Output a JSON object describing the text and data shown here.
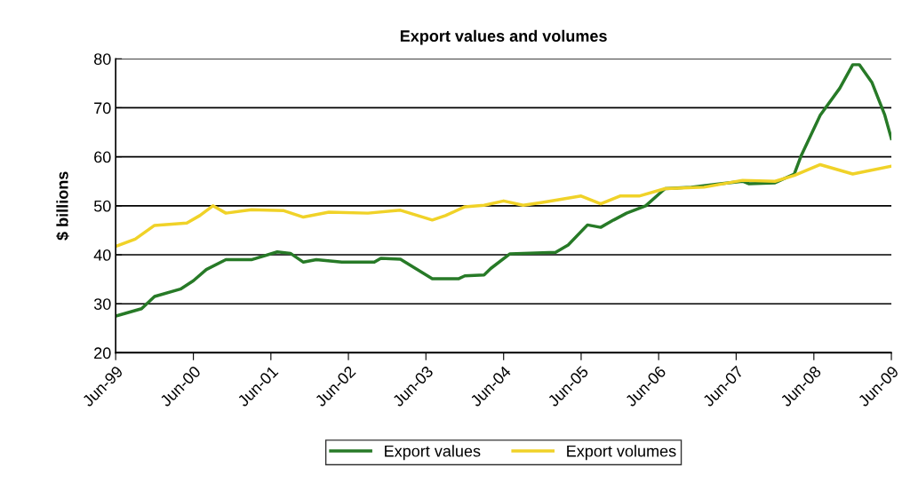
{
  "chart_data": {
    "type": "line",
    "title": "Export values and volumes",
    "ylabel": "$ billions",
    "xlim": [
      "1999-06",
      "2009-06"
    ],
    "ylim": [
      20,
      80
    ],
    "yticks": [
      20,
      30,
      40,
      50,
      60,
      70,
      80
    ],
    "xticks": [
      {
        "value": "1999-06",
        "label": "Jun-99"
      },
      {
        "value": "2000-06",
        "label": "Jun-00"
      },
      {
        "value": "2001-06",
        "label": "Jun-01"
      },
      {
        "value": "2002-06",
        "label": "Jun-02"
      },
      {
        "value": "2003-06",
        "label": "Jun-03"
      },
      {
        "value": "2004-06",
        "label": "Jun-04"
      },
      {
        "value": "2005-06",
        "label": "Jun-05"
      },
      {
        "value": "2006-06",
        "label": "Jun-06"
      },
      {
        "value": "2007-06",
        "label": "Jun-07"
      },
      {
        "value": "2008-06",
        "label": "Jun-08"
      },
      {
        "value": "2009-06",
        "label": "Jun-09"
      }
    ],
    "grid": "y",
    "legend": "bottom",
    "marker": "none",
    "line_style": "solid",
    "series": [
      {
        "name": "Export values",
        "color": "#277a27",
        "x": [
          "1999-06",
          "1999-10",
          "1999-12",
          "2000-04",
          "2000-06",
          "2000-08",
          "2000-11",
          "2001-03",
          "2001-07",
          "2001-09",
          "2001-11",
          "2002-01",
          "2002-05",
          "2002-10",
          "2002-11",
          "2003-02",
          "2003-07",
          "2003-11",
          "2003-12",
          "2004-03",
          "2004-04",
          "2004-07",
          "2005-02",
          "2005-04",
          "2005-07",
          "2005-09",
          "2005-11",
          "2006-01",
          "2006-04",
          "2006-07",
          "2006-11",
          "2007-03",
          "2007-07",
          "2007-08",
          "2007-12",
          "2008-03",
          "2008-04",
          "2008-07",
          "2008-10",
          "2008-12",
          "2009-01",
          "2009-03",
          "2009-05",
          "2009-06"
        ],
        "values": [
          27.5,
          29,
          31.5,
          33,
          34.7,
          37,
          39,
          39,
          40.6,
          40.3,
          38.5,
          39,
          38.5,
          38.5,
          39.3,
          39.1,
          35.1,
          35.1,
          35.7,
          35.9,
          37.2,
          40.2,
          40.5,
          42,
          46.1,
          45.6,
          47.1,
          48.5,
          50,
          53.5,
          53.8,
          54.4,
          55,
          54.5,
          54.7,
          56.5,
          60.1,
          68.5,
          74,
          78.8,
          78.8,
          75.2,
          68.5,
          63.7
        ]
      },
      {
        "name": "Export volumes",
        "color": "#f0d228",
        "x": [
          "1999-06",
          "1999-09",
          "1999-12",
          "2000-05",
          "2000-07",
          "2000-09",
          "2000-11",
          "2001-03",
          "2001-08",
          "2001-11",
          "2002-03",
          "2002-09",
          "2003-02",
          "2003-07",
          "2003-09",
          "2003-12",
          "2004-03",
          "2004-06",
          "2004-09",
          "2004-12",
          "2005-06",
          "2005-09",
          "2005-12",
          "2006-03",
          "2006-07",
          "2007-01",
          "2007-07",
          "2007-12",
          "2008-03",
          "2008-07",
          "2008-12",
          "2009-06"
        ],
        "values": [
          41.7,
          43.2,
          46,
          46.5,
          48,
          50,
          48.5,
          49.2,
          49,
          47.7,
          48.7,
          48.5,
          49.1,
          47.1,
          48,
          49.8,
          50.1,
          51,
          50.1,
          50.7,
          52,
          50.4,
          52,
          52,
          53.5,
          53.8,
          55.2,
          55,
          56.2,
          58.4,
          56.5,
          58.1
        ]
      }
    ]
  }
}
